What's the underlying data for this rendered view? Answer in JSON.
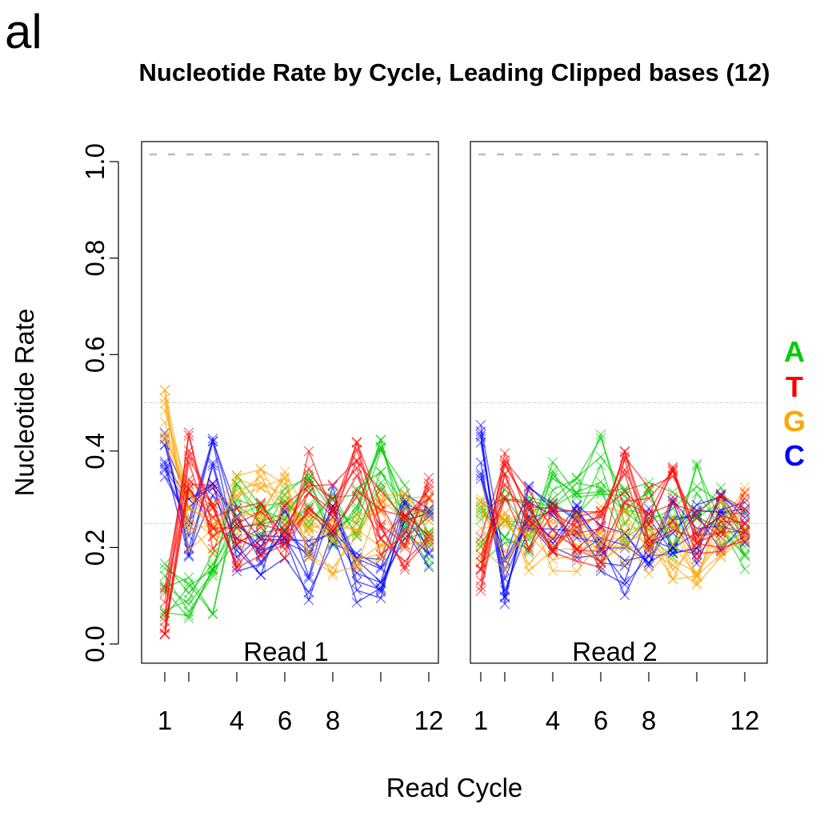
{
  "corner_label": "al",
  "chart_data": {
    "type": "line",
    "title": "Nucleotide Rate by Cycle, Leading Clipped bases (12)",
    "xlabel": "Read Cycle",
    "ylabel": "Nucleotide Rate",
    "ylim": [
      0,
      1.0
    ],
    "y_ticks": [
      "0.0",
      "0.2",
      "0.4",
      "0.6",
      "0.8",
      "1.0"
    ],
    "x_ticks": [
      "1",
      "4",
      "6",
      "8",
      "12"
    ],
    "reference_lines": [
      0.25,
      0.5
    ],
    "top_dashed_line": 1.015,
    "grid": false,
    "legend": {
      "placement": "right",
      "entries": [
        {
          "label": "A",
          "color": "#00cc00"
        },
        {
          "label": "T",
          "color": "#ff0000"
        },
        {
          "label": "G",
          "color": "#ffa500"
        },
        {
          "label": "C",
          "color": "#0000ff"
        }
      ]
    },
    "panels": [
      {
        "name": "Read 1",
        "cycles": [
          1,
          2,
          3,
          4,
          5,
          6,
          7,
          8,
          9,
          10,
          11,
          12
        ],
        "series": [
          {
            "base": "A",
            "color": "#00cc00",
            "mean": [
              0.1,
              0.11,
              0.13,
              0.28,
              0.26,
              0.27,
              0.3,
              0.25,
              0.28,
              0.36,
              0.26,
              0.23
            ]
          },
          {
            "base": "T",
            "color": "#ff0000",
            "mean": [
              0.05,
              0.38,
              0.26,
              0.22,
              0.25,
              0.24,
              0.34,
              0.28,
              0.36,
              0.25,
              0.22,
              0.28
            ]
          },
          {
            "base": "G",
            "color": "#ffa500",
            "mean": [
              0.46,
              0.26,
              0.25,
              0.28,
              0.32,
              0.29,
              0.22,
              0.2,
              0.2,
              0.24,
              0.27,
              0.26
            ]
          },
          {
            "base": "C",
            "color": "#0000ff",
            "mean": [
              0.4,
              0.25,
              0.36,
              0.22,
              0.2,
              0.23,
              0.16,
              0.26,
              0.15,
              0.13,
              0.27,
              0.21
            ]
          }
        ]
      },
      {
        "name": "Read 2",
        "cycles": [
          1,
          2,
          3,
          4,
          5,
          6,
          7,
          8,
          9,
          10,
          11,
          12
        ],
        "series": [
          {
            "base": "A",
            "color": "#00cc00",
            "mean": [
              0.23,
              0.26,
              0.24,
              0.31,
              0.3,
              0.38,
              0.26,
              0.27,
              0.25,
              0.33,
              0.26,
              0.21
            ]
          },
          {
            "base": "T",
            "color": "#ff0000",
            "mean": [
              0.16,
              0.34,
              0.26,
              0.26,
              0.24,
              0.22,
              0.35,
              0.26,
              0.3,
              0.24,
              0.26,
              0.28
            ]
          },
          {
            "base": "G",
            "color": "#ffa500",
            "mean": [
              0.24,
              0.22,
              0.22,
              0.22,
              0.22,
              0.22,
              0.22,
              0.21,
              0.2,
              0.18,
              0.24,
              0.27
            ]
          },
          {
            "base": "C",
            "color": "#0000ff",
            "mean": [
              0.4,
              0.15,
              0.27,
              0.22,
              0.22,
              0.18,
              0.17,
              0.23,
              0.23,
              0.22,
              0.25,
              0.23
            ]
          }
        ]
      }
    ]
  }
}
